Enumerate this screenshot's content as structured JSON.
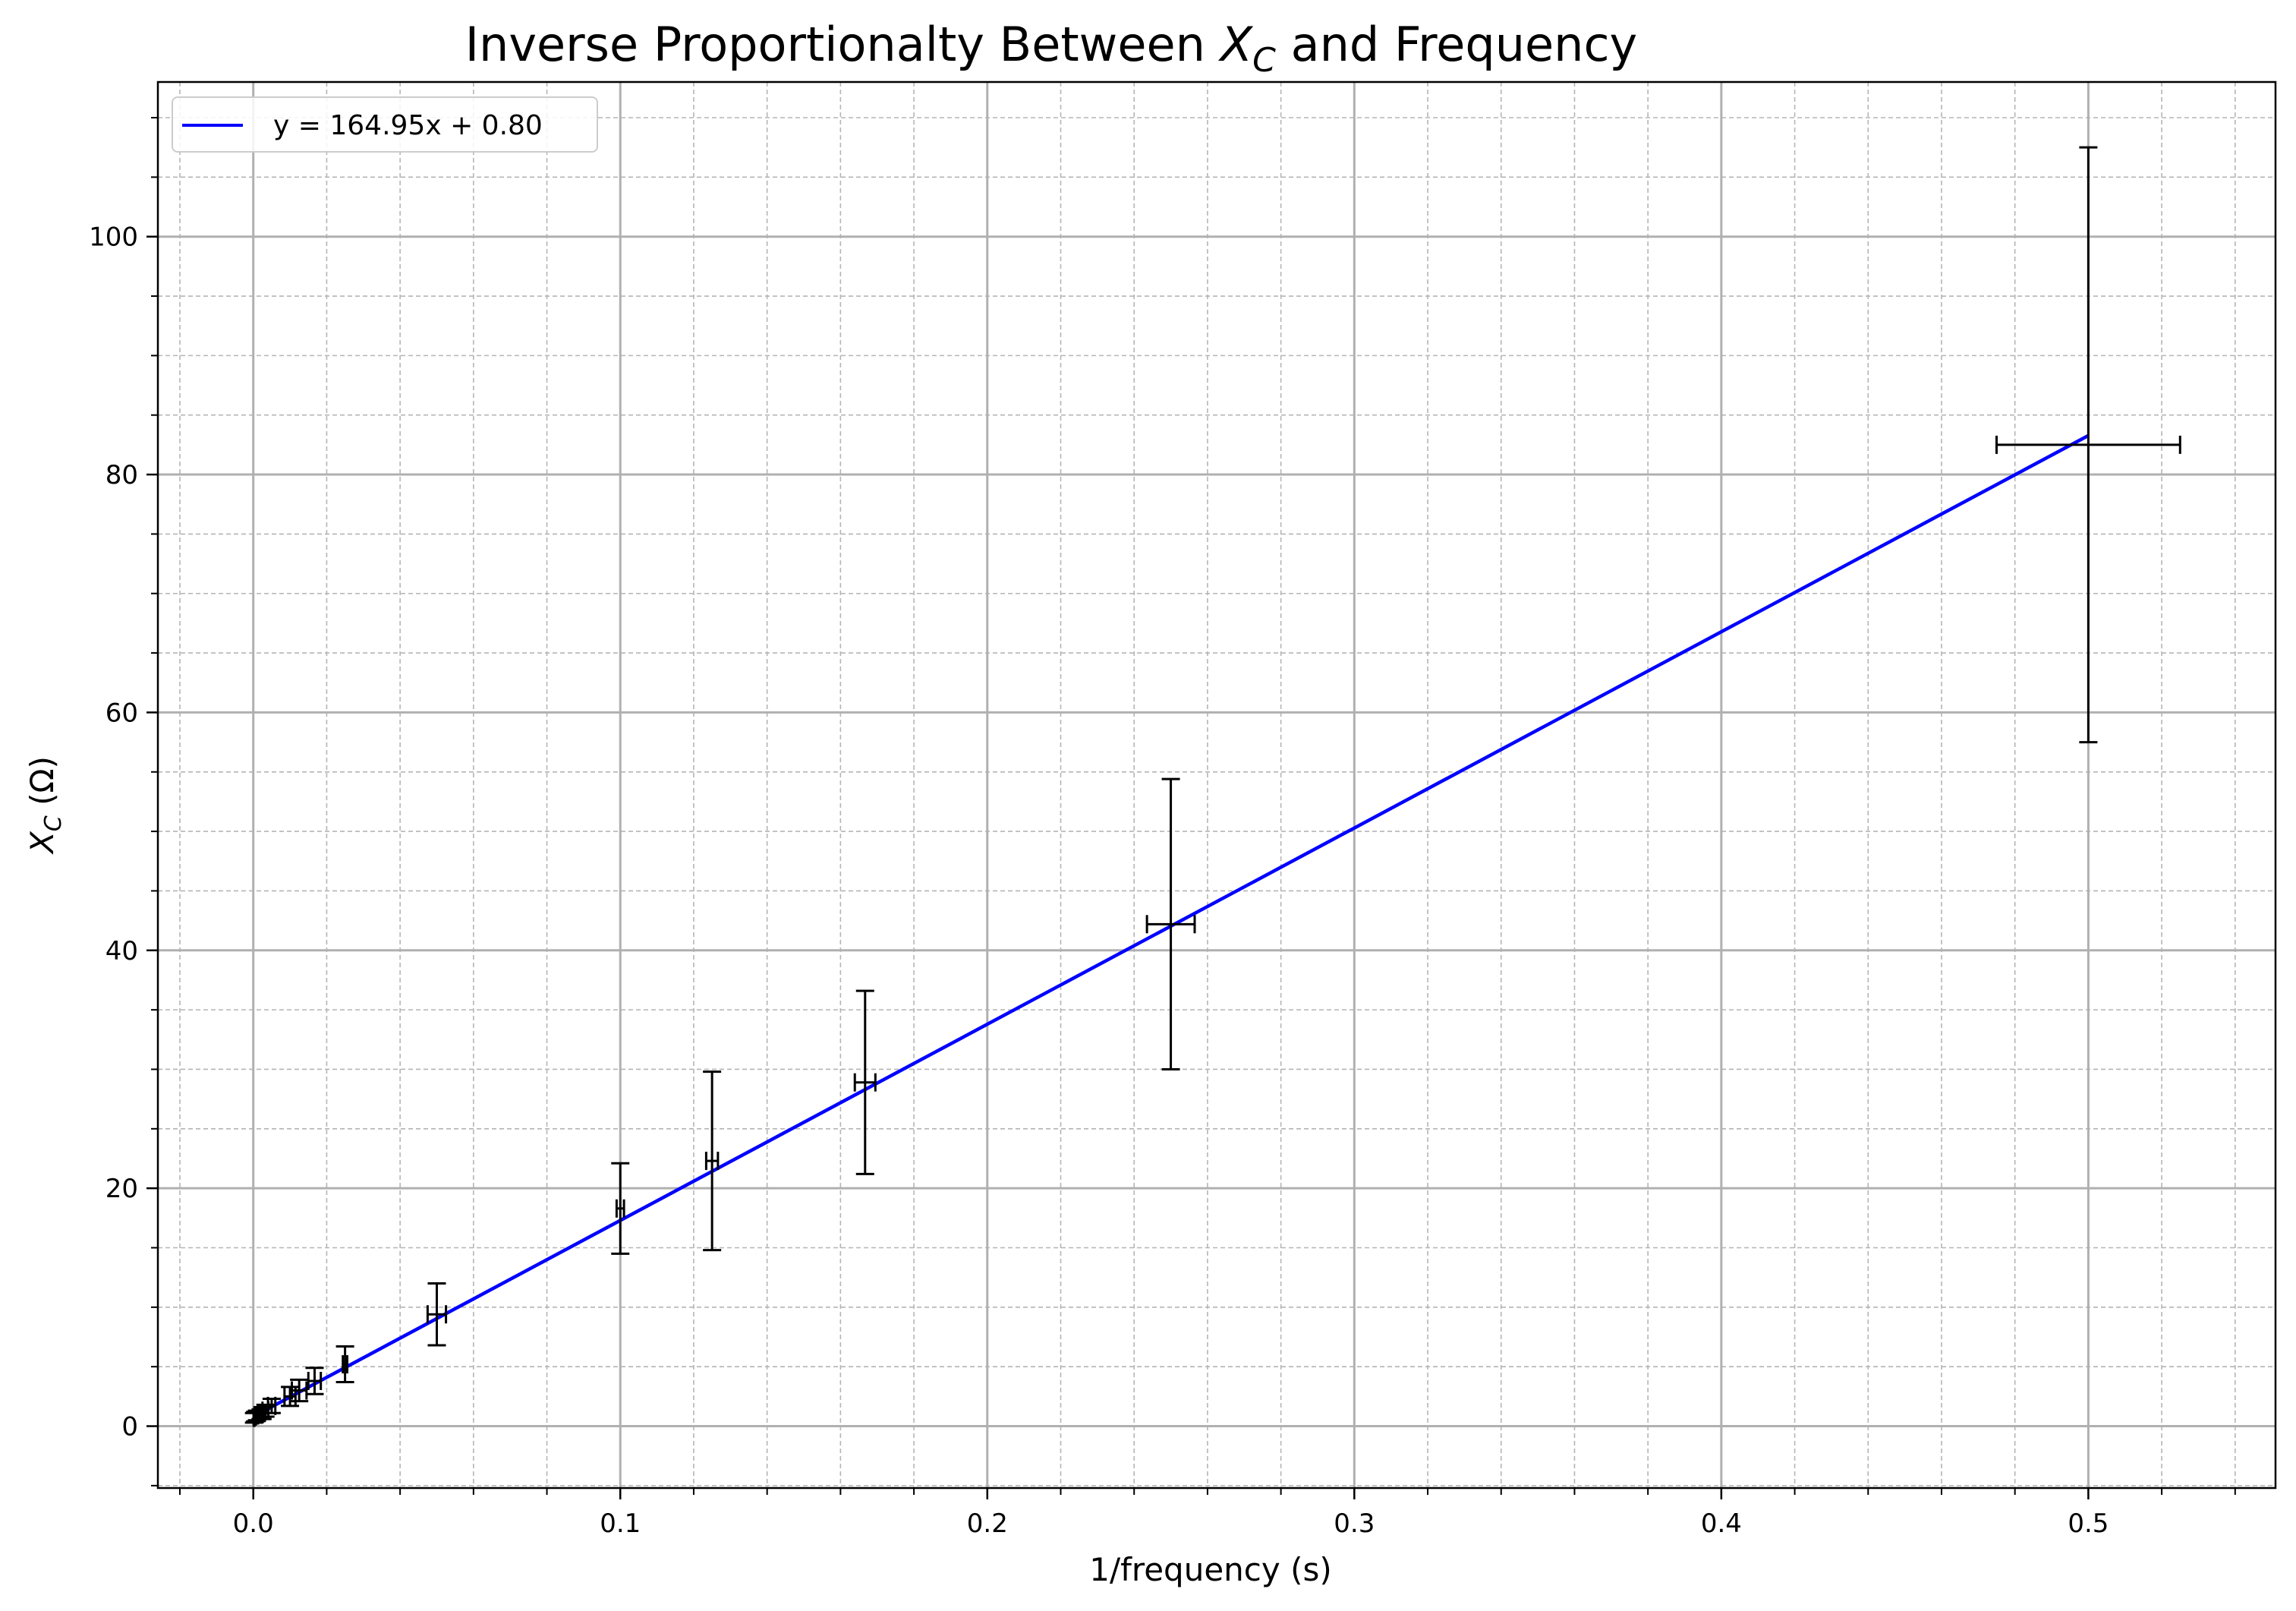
{
  "chart_data": {
    "type": "scatter",
    "title": {
      "pre": "Inverse Proportionalty Between ",
      "sym": "X",
      "sub": "C",
      "post": " and Frequency"
    },
    "xlabel": "1/frequency (s)",
    "ylabel": {
      "sym": "X",
      "sub": "C",
      "post": " (Ω)"
    },
    "xlim": [
      -0.026,
      0.551
    ],
    "ylim": [
      -5.2,
      113.0
    ],
    "xticks": [
      0.0,
      0.1,
      0.2,
      0.3,
      0.4,
      0.5
    ],
    "xtick_labels": [
      "0.0",
      "0.1",
      "0.2",
      "0.3",
      "0.4",
      "0.5"
    ],
    "yticks": [
      0,
      20,
      40,
      60,
      80,
      100
    ],
    "ytick_labels": [
      "0",
      "20",
      "40",
      "60",
      "80",
      "100"
    ],
    "x_minor_step": 0.02,
    "y_minor_step": 5,
    "grid": true,
    "legend_position": "top-left",
    "fit": {
      "label": "y = 164.95x + 0.80",
      "slope": 164.95,
      "intercept": 0.8,
      "x_range": [
        0.0,
        0.5
      ],
      "color": "#0000ff"
    },
    "errorbar_color": "#000000",
    "points": [
      {
        "x": 0.5,
        "y": 82.5,
        "xerr": 0.025,
        "yerr": 25.0
      },
      {
        "x": 0.25,
        "y": 42.2,
        "xerr": 0.0065,
        "yerr": 12.2
      },
      {
        "x": 0.1667,
        "y": 28.9,
        "xerr": 0.0028,
        "yerr": 7.7
      },
      {
        "x": 0.125,
        "y": 22.3,
        "xerr": 0.0016,
        "yerr": 7.5
      },
      {
        "x": 0.1,
        "y": 18.3,
        "xerr": 0.001,
        "yerr": 3.8
      },
      {
        "x": 0.05,
        "y": 9.4,
        "xerr": 0.0025,
        "yerr": 2.6
      },
      {
        "x": 0.025,
        "y": 5.2,
        "xerr": 0.0006,
        "yerr": 1.5
      },
      {
        "x": 0.0167,
        "y": 3.8,
        "xerr": 0.0017,
        "yerr": 1.1
      },
      {
        "x": 0.0125,
        "y": 3.0,
        "xerr": 0.002,
        "yerr": 0.9
      },
      {
        "x": 0.01,
        "y": 2.5,
        "xerr": 0.0015,
        "yerr": 0.8
      },
      {
        "x": 0.005,
        "y": 1.7,
        "xerr": 0.001,
        "yerr": 0.6
      },
      {
        "x": 0.0033,
        "y": 1.3,
        "xerr": 0.0008,
        "yerr": 0.5
      },
      {
        "x": 0.0025,
        "y": 1.1,
        "xerr": 0.0006,
        "yerr": 0.5
      },
      {
        "x": 0.002,
        "y": 1.0,
        "xerr": 0.0005,
        "yerr": 0.4
      },
      {
        "x": 0.001,
        "y": 0.9,
        "xerr": 0.0003,
        "yerr": 0.4
      },
      {
        "x": 0.0005,
        "y": 0.8,
        "xerr": 0.0002,
        "yerr": 0.4
      },
      {
        "x": 0.0002,
        "y": 0.7,
        "xerr": 0.0001,
        "yerr": 0.4
      }
    ]
  }
}
